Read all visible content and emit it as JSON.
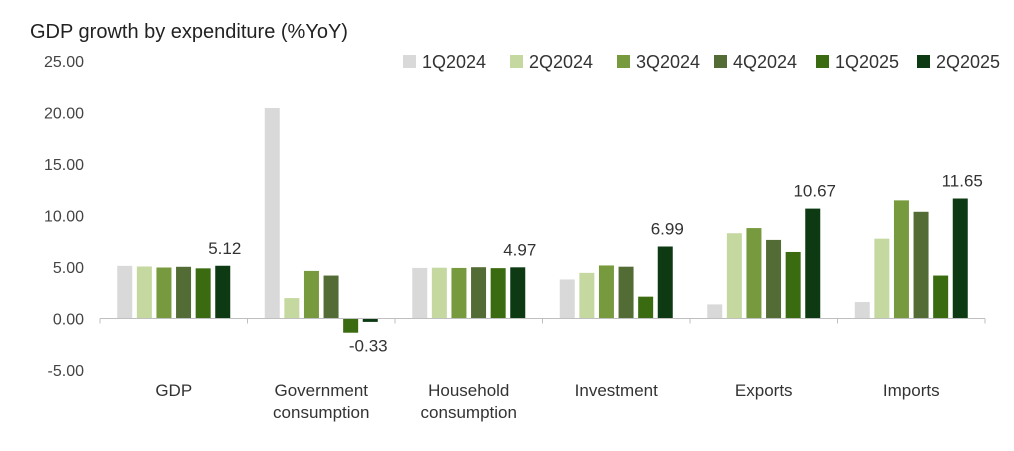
{
  "chart_data": {
    "type": "bar",
    "title": "GDP growth by expenditure (%YoY)",
    "categories": [
      "GDP",
      "Government consumption",
      "Household consumption",
      "Investment",
      "Exports",
      "Imports"
    ],
    "category_lines": [
      [
        "GDP"
      ],
      [
        "Government",
        "consumption"
      ],
      [
        "Household",
        "consumption"
      ],
      [
        "Investment"
      ],
      [
        "Exports"
      ],
      [
        "Imports"
      ]
    ],
    "series": [
      {
        "name": "1Q2024",
        "color": "#d9d9d9",
        "values": [
          5.11,
          20.44,
          4.91,
          3.79,
          1.37,
          1.6
        ]
      },
      {
        "name": "2Q2024",
        "color": "#c4d8a0",
        "values": [
          5.05,
          1.98,
          4.93,
          4.43,
          8.28,
          7.75
        ]
      },
      {
        "name": "3Q2024",
        "color": "#779a3e",
        "values": [
          4.95,
          4.62,
          4.91,
          5.15,
          8.78,
          11.47
        ]
      },
      {
        "name": "4Q2024",
        "color": "#536b34",
        "values": [
          5.02,
          4.17,
          4.98,
          5.03,
          7.63,
          10.36
        ]
      },
      {
        "name": "1Q2025",
        "color": "#3a6b10",
        "values": [
          4.87,
          -1.38,
          4.89,
          2.12,
          6.46,
          4.17
        ]
      },
      {
        "name": "2Q2025",
        "color": "#0d3a12",
        "values": [
          5.12,
          -0.33,
          4.97,
          6.99,
          10.67,
          11.65
        ]
      }
    ],
    "data_labels": [
      {
        "category": 0,
        "series": 5,
        "text": "5.12"
      },
      {
        "category": 1,
        "series": 5,
        "text": "-0.33"
      },
      {
        "category": 2,
        "series": 5,
        "text": "4.97"
      },
      {
        "category": 3,
        "series": 5,
        "text": "6.99"
      },
      {
        "category": 4,
        "series": 5,
        "text": "10.67"
      },
      {
        "category": 5,
        "series": 5,
        "text": "11.65"
      }
    ],
    "y_ticks": [
      "25.00",
      "20.00",
      "15.00",
      "10.00",
      "5.00",
      "0.00",
      "-5.00"
    ],
    "ylim": [
      -5,
      25
    ],
    "grid": false,
    "legend_position": "top-right"
  }
}
